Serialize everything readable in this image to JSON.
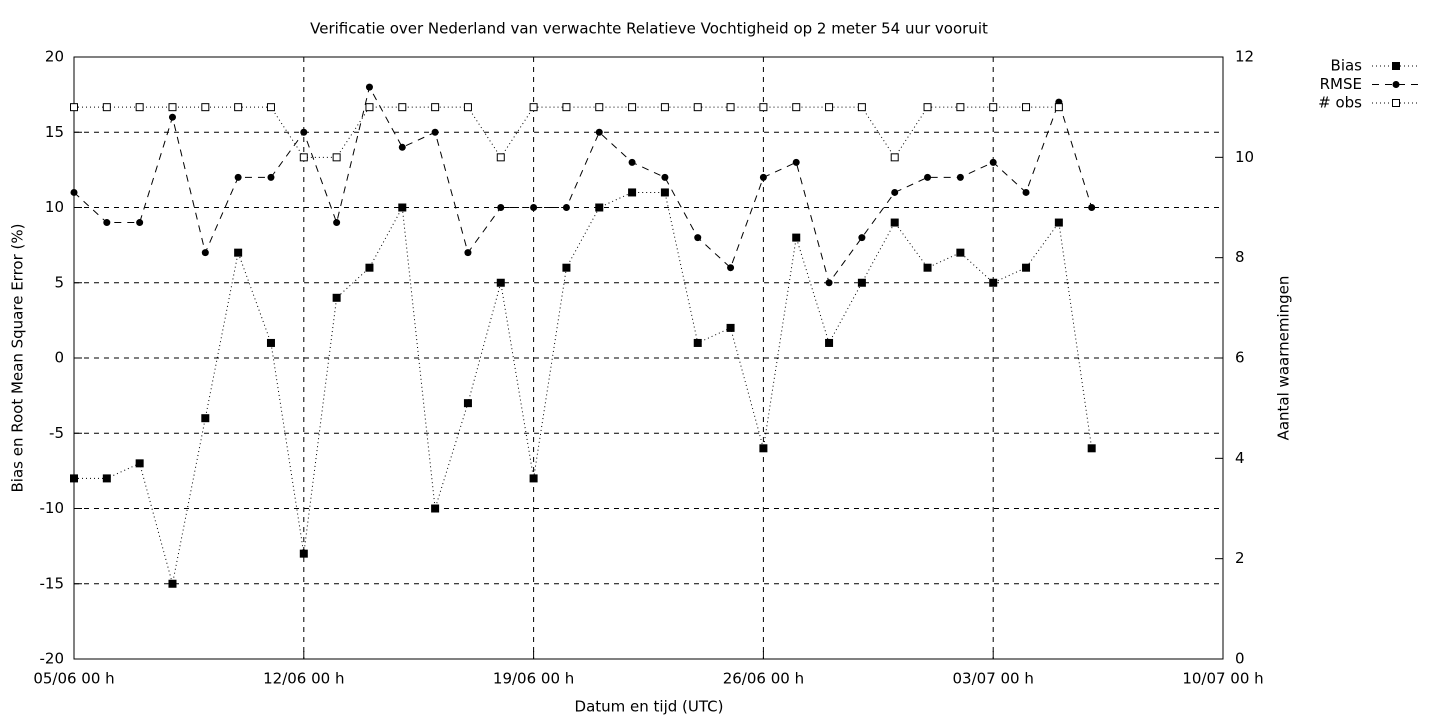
{
  "chart_data": {
    "type": "line",
    "title": "Verificatie over Nederland van verwachte Relatieve Vochtigheid op 2 meter 54 uur vooruit",
    "x_label": "Datum en tijd (UTC)",
    "y_label": "Bias en Root Mean Square Error (%)",
    "y2_label": "Aantal waarnemingen",
    "x": [
      0,
      1,
      2,
      3,
      4,
      5,
      6,
      7,
      8,
      9,
      10,
      11,
      12,
      13,
      14,
      15,
      16,
      17,
      18,
      19,
      20,
      21,
      22,
      23,
      24,
      25,
      26,
      27,
      28,
      29,
      30,
      31
    ],
    "xlim": [
      0,
      35
    ],
    "xticks": [
      {
        "value": 0,
        "label": "05/06 00 h"
      },
      {
        "value": 7,
        "label": "12/06 00 h"
      },
      {
        "value": 14,
        "label": "19/06 00 h"
      },
      {
        "value": 21,
        "label": "26/06 00 h"
      },
      {
        "value": 28,
        "label": "03/07 00 h"
      },
      {
        "value": 35,
        "label": "10/07 00 h"
      }
    ],
    "ylim": [
      -20,
      20
    ],
    "yticks": [
      -20,
      -15,
      -10,
      -5,
      0,
      5,
      10,
      15,
      20
    ],
    "y2lim": [
      0,
      12
    ],
    "y2ticks": [
      0,
      2,
      4,
      6,
      8,
      10,
      12
    ],
    "grid": true,
    "legend": "top-right",
    "series": [
      {
        "name": "Bias",
        "color": "#000000",
        "line_style": "dotted",
        "marker": "filled-square",
        "values": [
          -8,
          -8,
          -7,
          -15,
          -4,
          7,
          1,
          -13,
          4,
          6,
          10,
          -10,
          -3,
          5,
          -8,
          6,
          10,
          11,
          11,
          1,
          2,
          -6,
          8,
          1,
          5,
          9,
          6,
          7,
          5,
          6,
          9,
          -6
        ]
      },
      {
        "name": "RMSE",
        "color": "#000000",
        "line_style": "dashed",
        "marker": "filled-circle",
        "values": [
          11,
          9,
          9,
          16,
          7,
          12,
          12,
          15,
          9,
          18,
          14,
          15,
          7,
          10,
          10,
          10,
          15,
          13,
          12,
          8,
          6,
          12,
          13,
          5,
          8,
          11,
          12,
          12,
          13,
          11,
          17,
          10
        ]
      },
      {
        "name": "# obs",
        "color": "#000000",
        "line_style": "dotted",
        "marker": "open-square",
        "axis": "y2",
        "values": [
          11,
          11,
          11,
          11,
          11,
          11,
          11,
          10,
          10,
          11,
          11,
          11,
          11,
          10,
          11,
          11,
          11,
          11,
          11,
          11,
          11,
          11,
          11,
          11,
          11,
          10,
          11,
          11,
          11,
          11,
          11,
          null
        ]
      }
    ]
  }
}
